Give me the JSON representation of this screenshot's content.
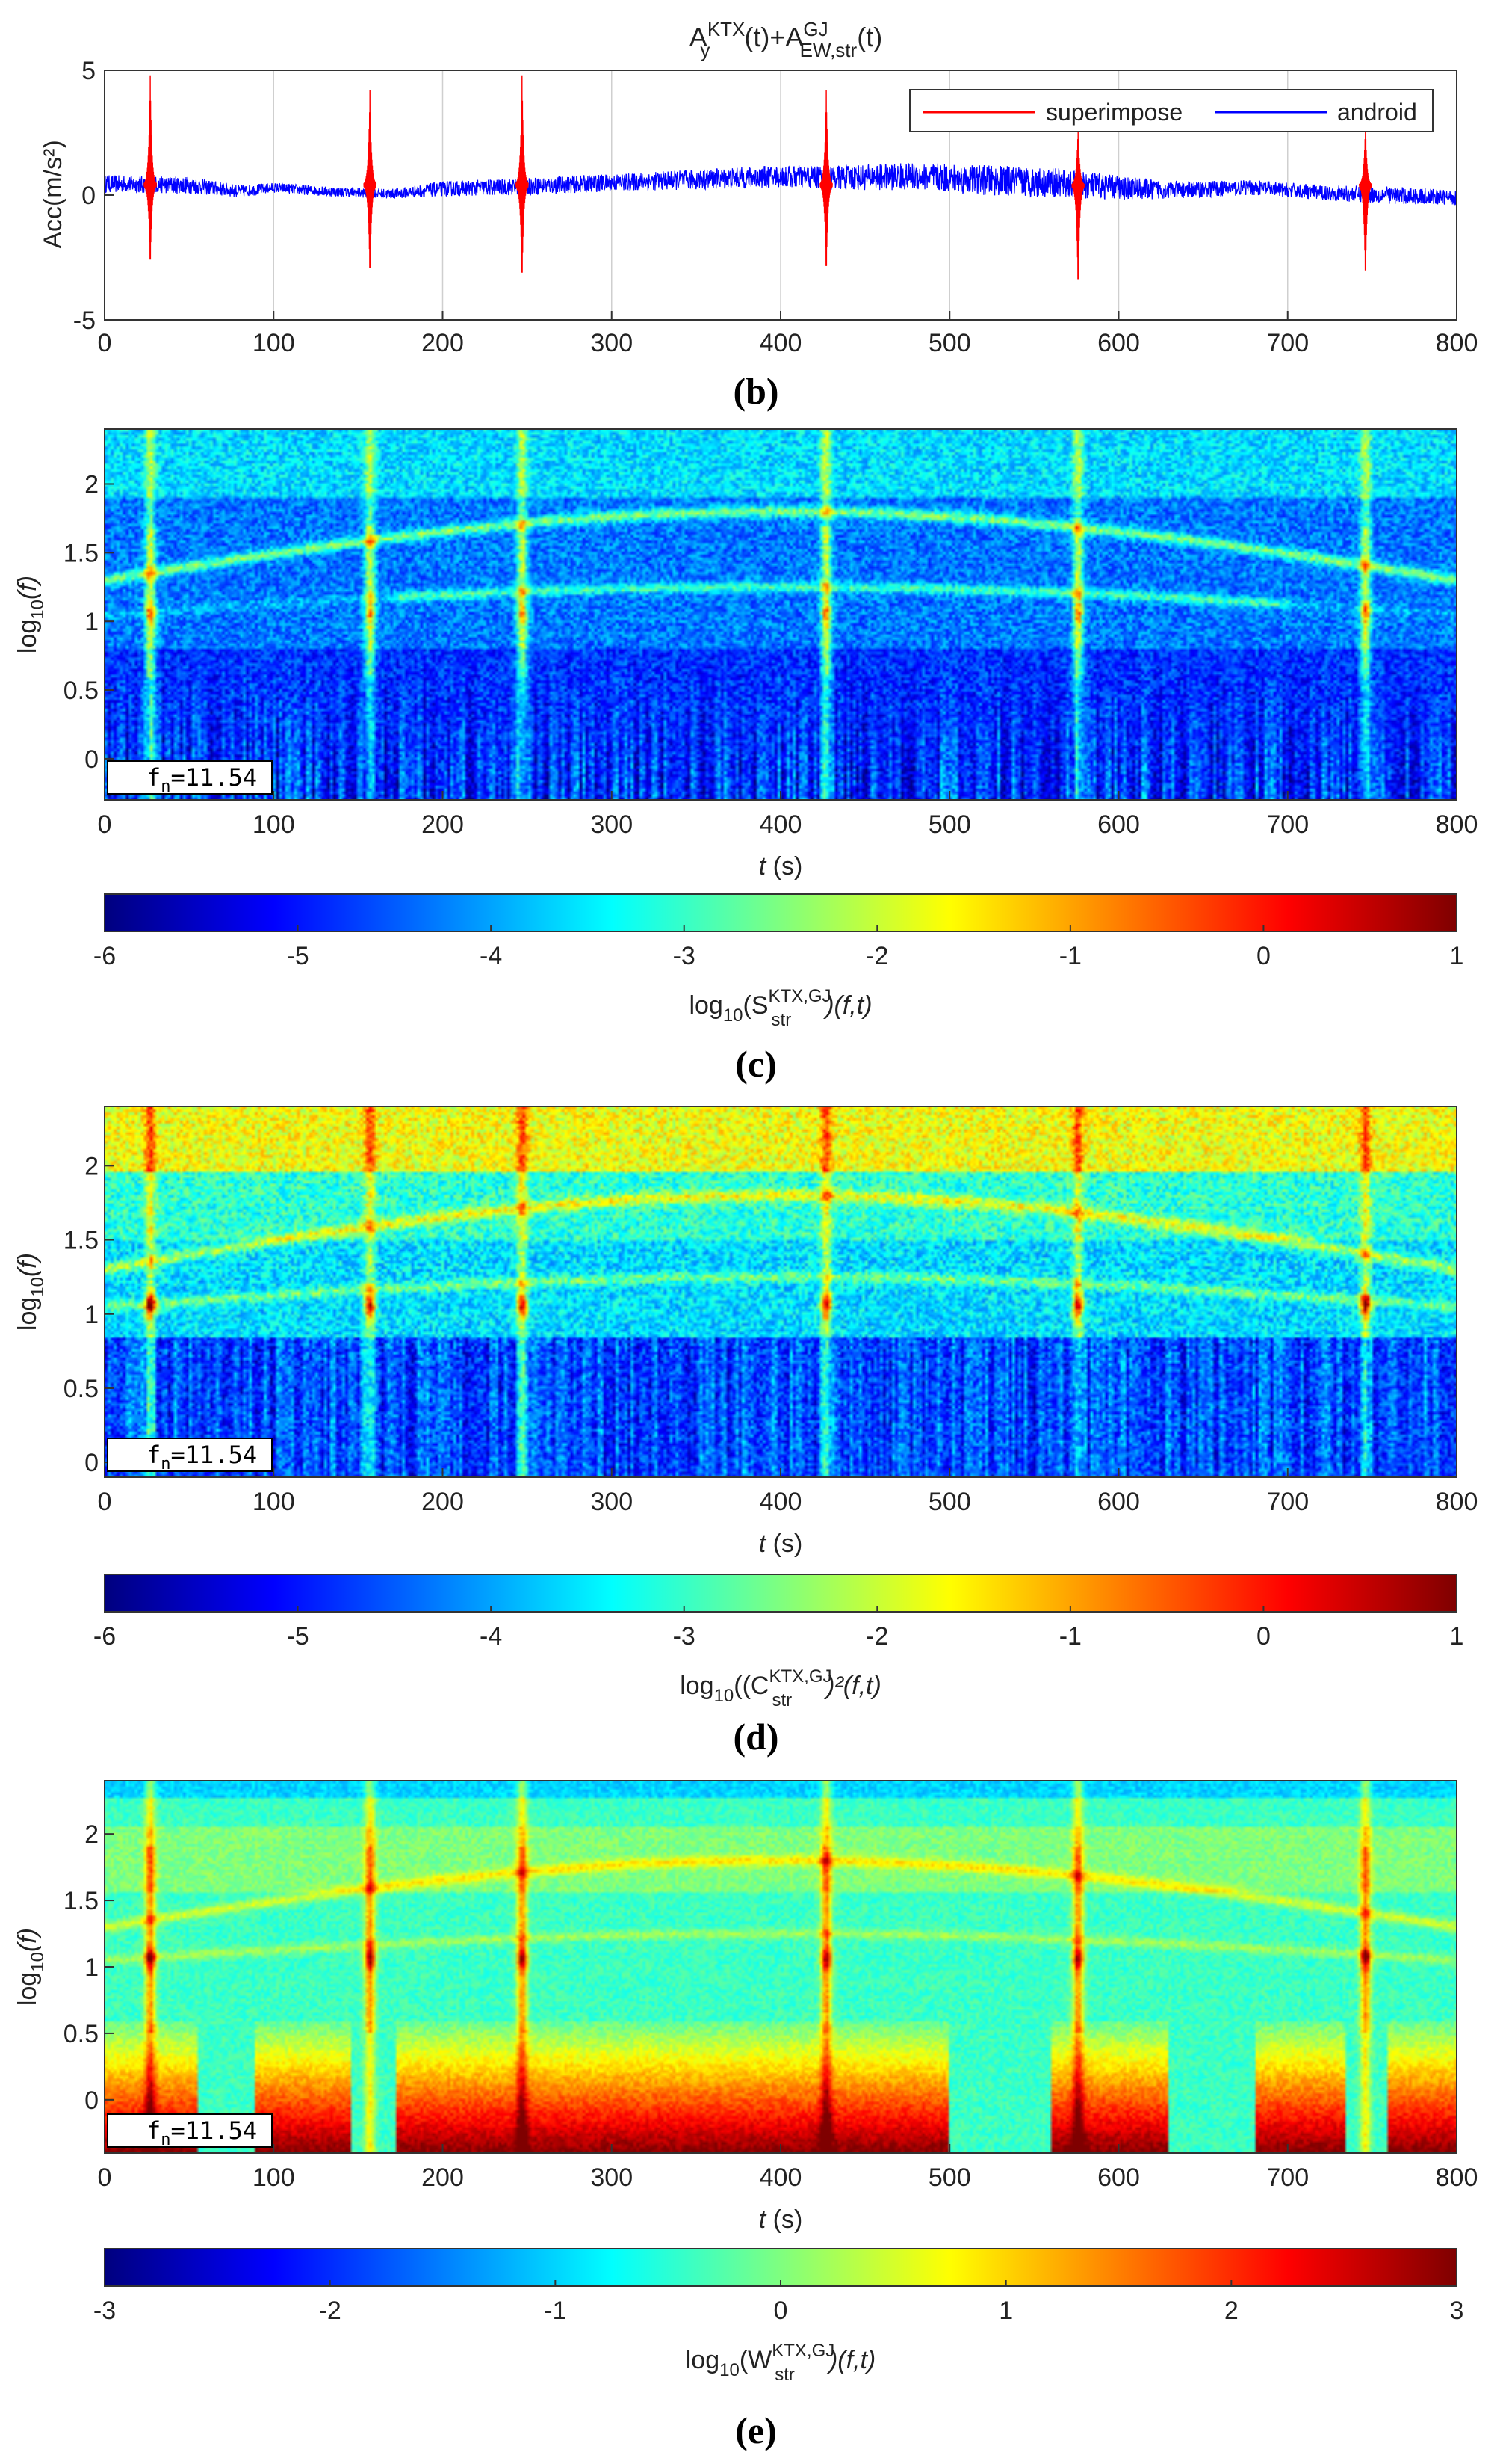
{
  "figure": {
    "panel_b_caption": "(b)",
    "panel_c_caption": "(c)",
    "panel_d_caption": "(d)",
    "panel_e_caption": "(e)"
  },
  "colormap": [
    "#00007f",
    "#0000ff",
    "#007fff",
    "#00ffff",
    "#7fff7f",
    "#ffff00",
    "#ff7f00",
    "#ff0000",
    "#7f0000"
  ],
  "chart_data": [
    {
      "id": "b",
      "type": "line",
      "title_parts": {
        "a": "A",
        "a_sup": "KTX",
        "a_sub": "y",
        "mid": "(t)+A",
        "b_sup": "GJ",
        "b_sub": "EW,str",
        "end": "(t)"
      },
      "xlabel": "",
      "ylabel": "Acc(m/s²)",
      "xlim": [
        0,
        800
      ],
      "ylim": [
        -5,
        5
      ],
      "xticks": [
        0,
        100,
        200,
        300,
        400,
        500,
        600,
        700,
        800
      ],
      "yticks": [
        -5,
        0,
        5
      ],
      "grid": "vertical",
      "legend_position": "top-right",
      "series": [
        {
          "name": "superimpose",
          "color": "#ff0000",
          "spikes": [
            {
              "t": 27,
              "peak": 4.4,
              "trough": -3.4
            },
            {
              "t": 157,
              "peak": 3.8,
              "trough": -3.8
            },
            {
              "t": 247,
              "peak": 4.4,
              "trough": -4.0
            },
            {
              "t": 427,
              "peak": 3.8,
              "trough": -3.7
            },
            {
              "t": 576,
              "peak": 2.4,
              "trough": -4.3
            },
            {
              "t": 746,
              "peak": 2.4,
              "trough": -3.9
            }
          ]
        },
        {
          "name": "android",
          "color": "#0000ff",
          "envelope": {
            "t": [
              0,
              50,
              80,
              100,
              130,
              170,
              200,
              250,
              300,
              400,
              430,
              480,
              520,
              560,
              600,
              630,
              680,
              720,
              760,
              800
            ],
            "mean": [
              0.45,
              0.4,
              0.15,
              0.3,
              0.15,
              0.05,
              0.25,
              0.35,
              0.5,
              0.75,
              0.7,
              0.75,
              0.6,
              0.5,
              0.3,
              0.2,
              0.3,
              0.1,
              0.0,
              -0.1
            ],
            "amp": [
              0.35,
              0.35,
              0.25,
              0.2,
              0.2,
              0.2,
              0.3,
              0.35,
              0.35,
              0.45,
              0.5,
              0.55,
              0.6,
              0.6,
              0.5,
              0.35,
              0.3,
              0.3,
              0.35,
              0.3
            ]
          }
        }
      ]
    },
    {
      "id": "c",
      "type": "heatmap",
      "xlabel_var": "t",
      "xlabel_unit": " (s)",
      "ylabel": {
        "pre": "log",
        "sub": "10",
        "post": "(f)"
      },
      "xlim": [
        0,
        800
      ],
      "ylim": [
        -0.3,
        2.4
      ],
      "xticks": [
        0,
        100,
        200,
        300,
        400,
        500,
        600,
        700,
        800
      ],
      "yticks": [
        0,
        0.5,
        1,
        1.5,
        2
      ],
      "annotation": {
        "pre": "f",
        "sub": "n",
        "post": "=11.54"
      },
      "train_events_t": [
        27,
        157,
        247,
        427,
        576,
        746
      ],
      "mode_log10f": 1.06,
      "colorbar": {
        "range": [
          -6,
          1
        ],
        "ticks": [
          -6,
          -5,
          -4,
          -3,
          -2,
          -1,
          0,
          1
        ],
        "label": {
          "pre": "log",
          "sub1": "10",
          "mid": "(S",
          "sup": "KTX,GJ",
          "sub2": "str",
          "post": ")(f,t)"
        }
      },
      "description_level": {
        "background": -4.8,
        "band_high": -3.5,
        "peak": -2.0
      }
    },
    {
      "id": "d",
      "type": "heatmap",
      "xlabel_var": "t",
      "xlabel_unit": " (s)",
      "ylabel": {
        "pre": "log",
        "sub": "10",
        "post": "(f)"
      },
      "xlim": [
        0,
        800
      ],
      "ylim": [
        -0.1,
        2.4
      ],
      "xticks": [
        0,
        100,
        200,
        300,
        400,
        500,
        600,
        700,
        800
      ],
      "yticks": [
        0,
        0.5,
        1,
        1.5,
        2
      ],
      "annotation": {
        "pre": "f",
        "sub": "n",
        "post": "=11.54"
      },
      "train_events_t": [
        27,
        157,
        247,
        427,
        576,
        746
      ],
      "mode_log10f": 1.06,
      "colorbar": {
        "range": [
          -6,
          1
        ],
        "ticks": [
          -6,
          -5,
          -4,
          -3,
          -2,
          -1,
          0,
          1
        ],
        "label": {
          "pre": "log",
          "sub1": "10",
          "mid": "((C",
          "sup": "KTX,GJ",
          "sub2": "str",
          "post": ")²(f,t)"
        }
      }
    },
    {
      "id": "e",
      "type": "heatmap",
      "xlabel_var": "t",
      "xlabel_unit": " (s)",
      "ylabel": {
        "pre": "log",
        "sub": "10",
        "post": "(f)"
      },
      "xlim": [
        0,
        800
      ],
      "ylim": [
        -0.4,
        2.4
      ],
      "xticks": [
        0,
        100,
        200,
        300,
        400,
        500,
        600,
        700,
        800
      ],
      "yticks": [
        0,
        0.5,
        1,
        1.5,
        2
      ],
      "annotation": {
        "pre": "f",
        "sub": "n",
        "post": "=11.54"
      },
      "train_events_t": [
        27,
        157,
        247,
        427,
        576,
        746
      ],
      "mode_log10f": 1.06,
      "colorbar": {
        "range": [
          -3,
          3
        ],
        "ticks": [
          -3,
          -2,
          -1,
          0,
          1,
          2,
          3
        ],
        "label": {
          "pre": "log",
          "sub1": "10",
          "mid": "(W",
          "sup": "KTX,GJ",
          "sub2": "str",
          "post": ")(f,t)"
        }
      }
    }
  ]
}
